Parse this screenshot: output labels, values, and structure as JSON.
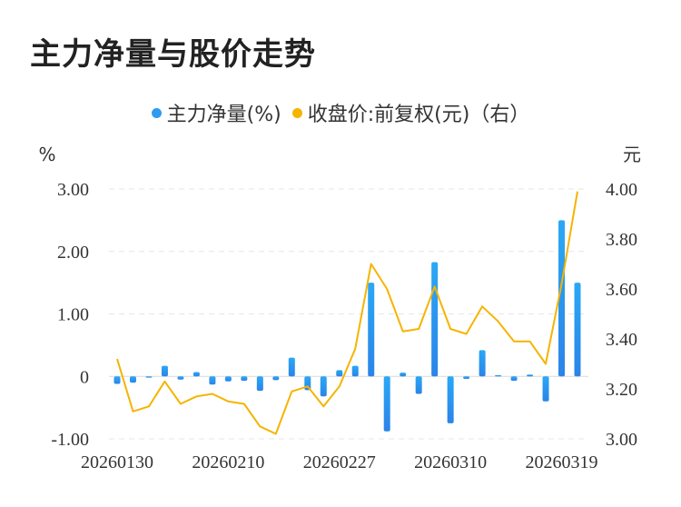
{
  "title": "主力净量与股价走势",
  "legend": [
    {
      "label": "主力净量(%)",
      "color": "#2e9bf0"
    },
    {
      "label": "收盘价:前复权(元)（右）",
      "color": "#f5b400"
    }
  ],
  "chart_data": {
    "type": "bar+line",
    "left_axis_unit": "%",
    "right_axis_unit": "元",
    "left_ticks": [
      "3.00",
      "2.00",
      "1.00",
      "0",
      "-1.00"
    ],
    "right_ticks": [
      "4.00",
      "3.80",
      "3.60",
      "3.40",
      "3.20",
      "3.00"
    ],
    "ylim_left": [
      -1.0,
      3.0
    ],
    "ylim_right": [
      3.0,
      4.0
    ],
    "x_tick_labels": [
      {
        "index": 0,
        "label": "20260130"
      },
      {
        "index": 7,
        "label": "20260210"
      },
      {
        "index": 14,
        "label": "20260227"
      },
      {
        "index": 21,
        "label": "20260310"
      },
      {
        "index": 28,
        "label": "20260319"
      }
    ],
    "series": [
      {
        "name": "主力净量(%)",
        "type": "bar",
        "axis": "left",
        "values": [
          -0.12,
          -0.1,
          -0.02,
          0.17,
          -0.05,
          0.07,
          -0.13,
          -0.08,
          -0.07,
          -0.23,
          -0.06,
          0.3,
          -0.22,
          -0.32,
          0.1,
          0.17,
          1.5,
          -0.88,
          0.06,
          -0.28,
          1.83,
          -0.75,
          -0.04,
          0.42,
          0.02,
          -0.07,
          0.03,
          -0.4,
          2.5,
          1.5
        ]
      },
      {
        "name": "收盘价:前复权(元)（右）",
        "type": "line",
        "axis": "right",
        "values": [
          3.32,
          3.11,
          3.13,
          3.23,
          3.14,
          3.17,
          3.18,
          3.15,
          3.14,
          3.05,
          3.02,
          3.19,
          3.21,
          3.13,
          3.21,
          3.36,
          3.7,
          3.6,
          3.43,
          3.44,
          3.61,
          3.44,
          3.42,
          3.53,
          3.47,
          3.39,
          3.39,
          3.3,
          3.62,
          3.99
        ]
      }
    ]
  }
}
